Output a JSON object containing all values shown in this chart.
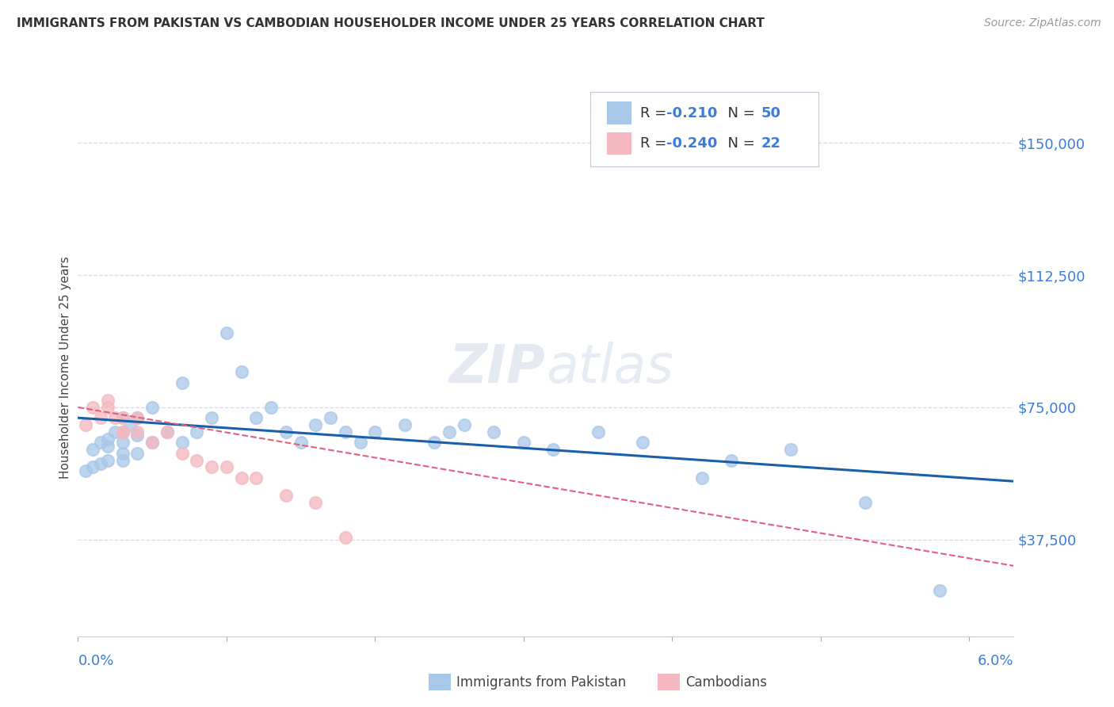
{
  "title": "IMMIGRANTS FROM PAKISTAN VS CAMBODIAN HOUSEHOLDER INCOME UNDER 25 YEARS CORRELATION CHART",
  "source": "Source: ZipAtlas.com",
  "ylabel": "Householder Income Under 25 years",
  "legend1_r": "-0.210",
  "legend1_n": "50",
  "legend2_r": "-0.240",
  "legend2_n": "22",
  "xlim": [
    0.0,
    0.063
  ],
  "ylim": [
    10000,
    162500
  ],
  "yticks": [
    37500,
    75000,
    112500,
    150000
  ],
  "ytick_labels": [
    "$37,500",
    "$75,000",
    "$112,500",
    "$150,000"
  ],
  "pakistan_color": "#a8c8e8",
  "cambodian_color": "#f4b8c0",
  "pakistan_line_color": "#1a5fa8",
  "cambodian_line_color": "#e06080",
  "background_color": "#ffffff",
  "grid_color": "#d8d8e8",
  "pakistan_scatter_x": [
    0.0005,
    0.001,
    0.001,
    0.0015,
    0.0015,
    0.002,
    0.002,
    0.002,
    0.0025,
    0.003,
    0.003,
    0.003,
    0.003,
    0.003,
    0.0035,
    0.004,
    0.004,
    0.004,
    0.005,
    0.005,
    0.006,
    0.007,
    0.007,
    0.008,
    0.009,
    0.01,
    0.011,
    0.012,
    0.013,
    0.014,
    0.015,
    0.016,
    0.017,
    0.018,
    0.019,
    0.02,
    0.022,
    0.024,
    0.025,
    0.026,
    0.028,
    0.03,
    0.032,
    0.035,
    0.038,
    0.042,
    0.044,
    0.048,
    0.053,
    0.058
  ],
  "pakistan_scatter_y": [
    57000,
    58000,
    63000,
    59000,
    65000,
    60000,
    64000,
    66000,
    68000,
    60000,
    62000,
    65000,
    68000,
    72000,
    70000,
    62000,
    67000,
    72000,
    65000,
    75000,
    68000,
    65000,
    82000,
    68000,
    72000,
    96000,
    85000,
    72000,
    75000,
    68000,
    65000,
    70000,
    72000,
    68000,
    65000,
    68000,
    70000,
    65000,
    68000,
    70000,
    68000,
    65000,
    63000,
    68000,
    65000,
    55000,
    60000,
    63000,
    48000,
    23000
  ],
  "cambodian_scatter_x": [
    0.0005,
    0.001,
    0.0015,
    0.002,
    0.002,
    0.0025,
    0.003,
    0.003,
    0.003,
    0.004,
    0.004,
    0.005,
    0.006,
    0.007,
    0.008,
    0.009,
    0.01,
    0.011,
    0.012,
    0.014,
    0.016,
    0.018
  ],
  "cambodian_scatter_y": [
    70000,
    75000,
    72000,
    77000,
    75000,
    72000,
    72000,
    68000,
    68000,
    72000,
    68000,
    65000,
    68000,
    62000,
    60000,
    58000,
    58000,
    55000,
    55000,
    50000,
    48000,
    38000
  ],
  "pakistan_line_x0": 0.0,
  "pakistan_line_x1": 0.063,
  "pakistan_line_y0": 72000,
  "pakistan_line_y1": 54000,
  "cambodian_line_x0": 0.0,
  "cambodian_line_x1": 0.063,
  "cambodian_line_y0": 75000,
  "cambodian_line_y1": 30000
}
